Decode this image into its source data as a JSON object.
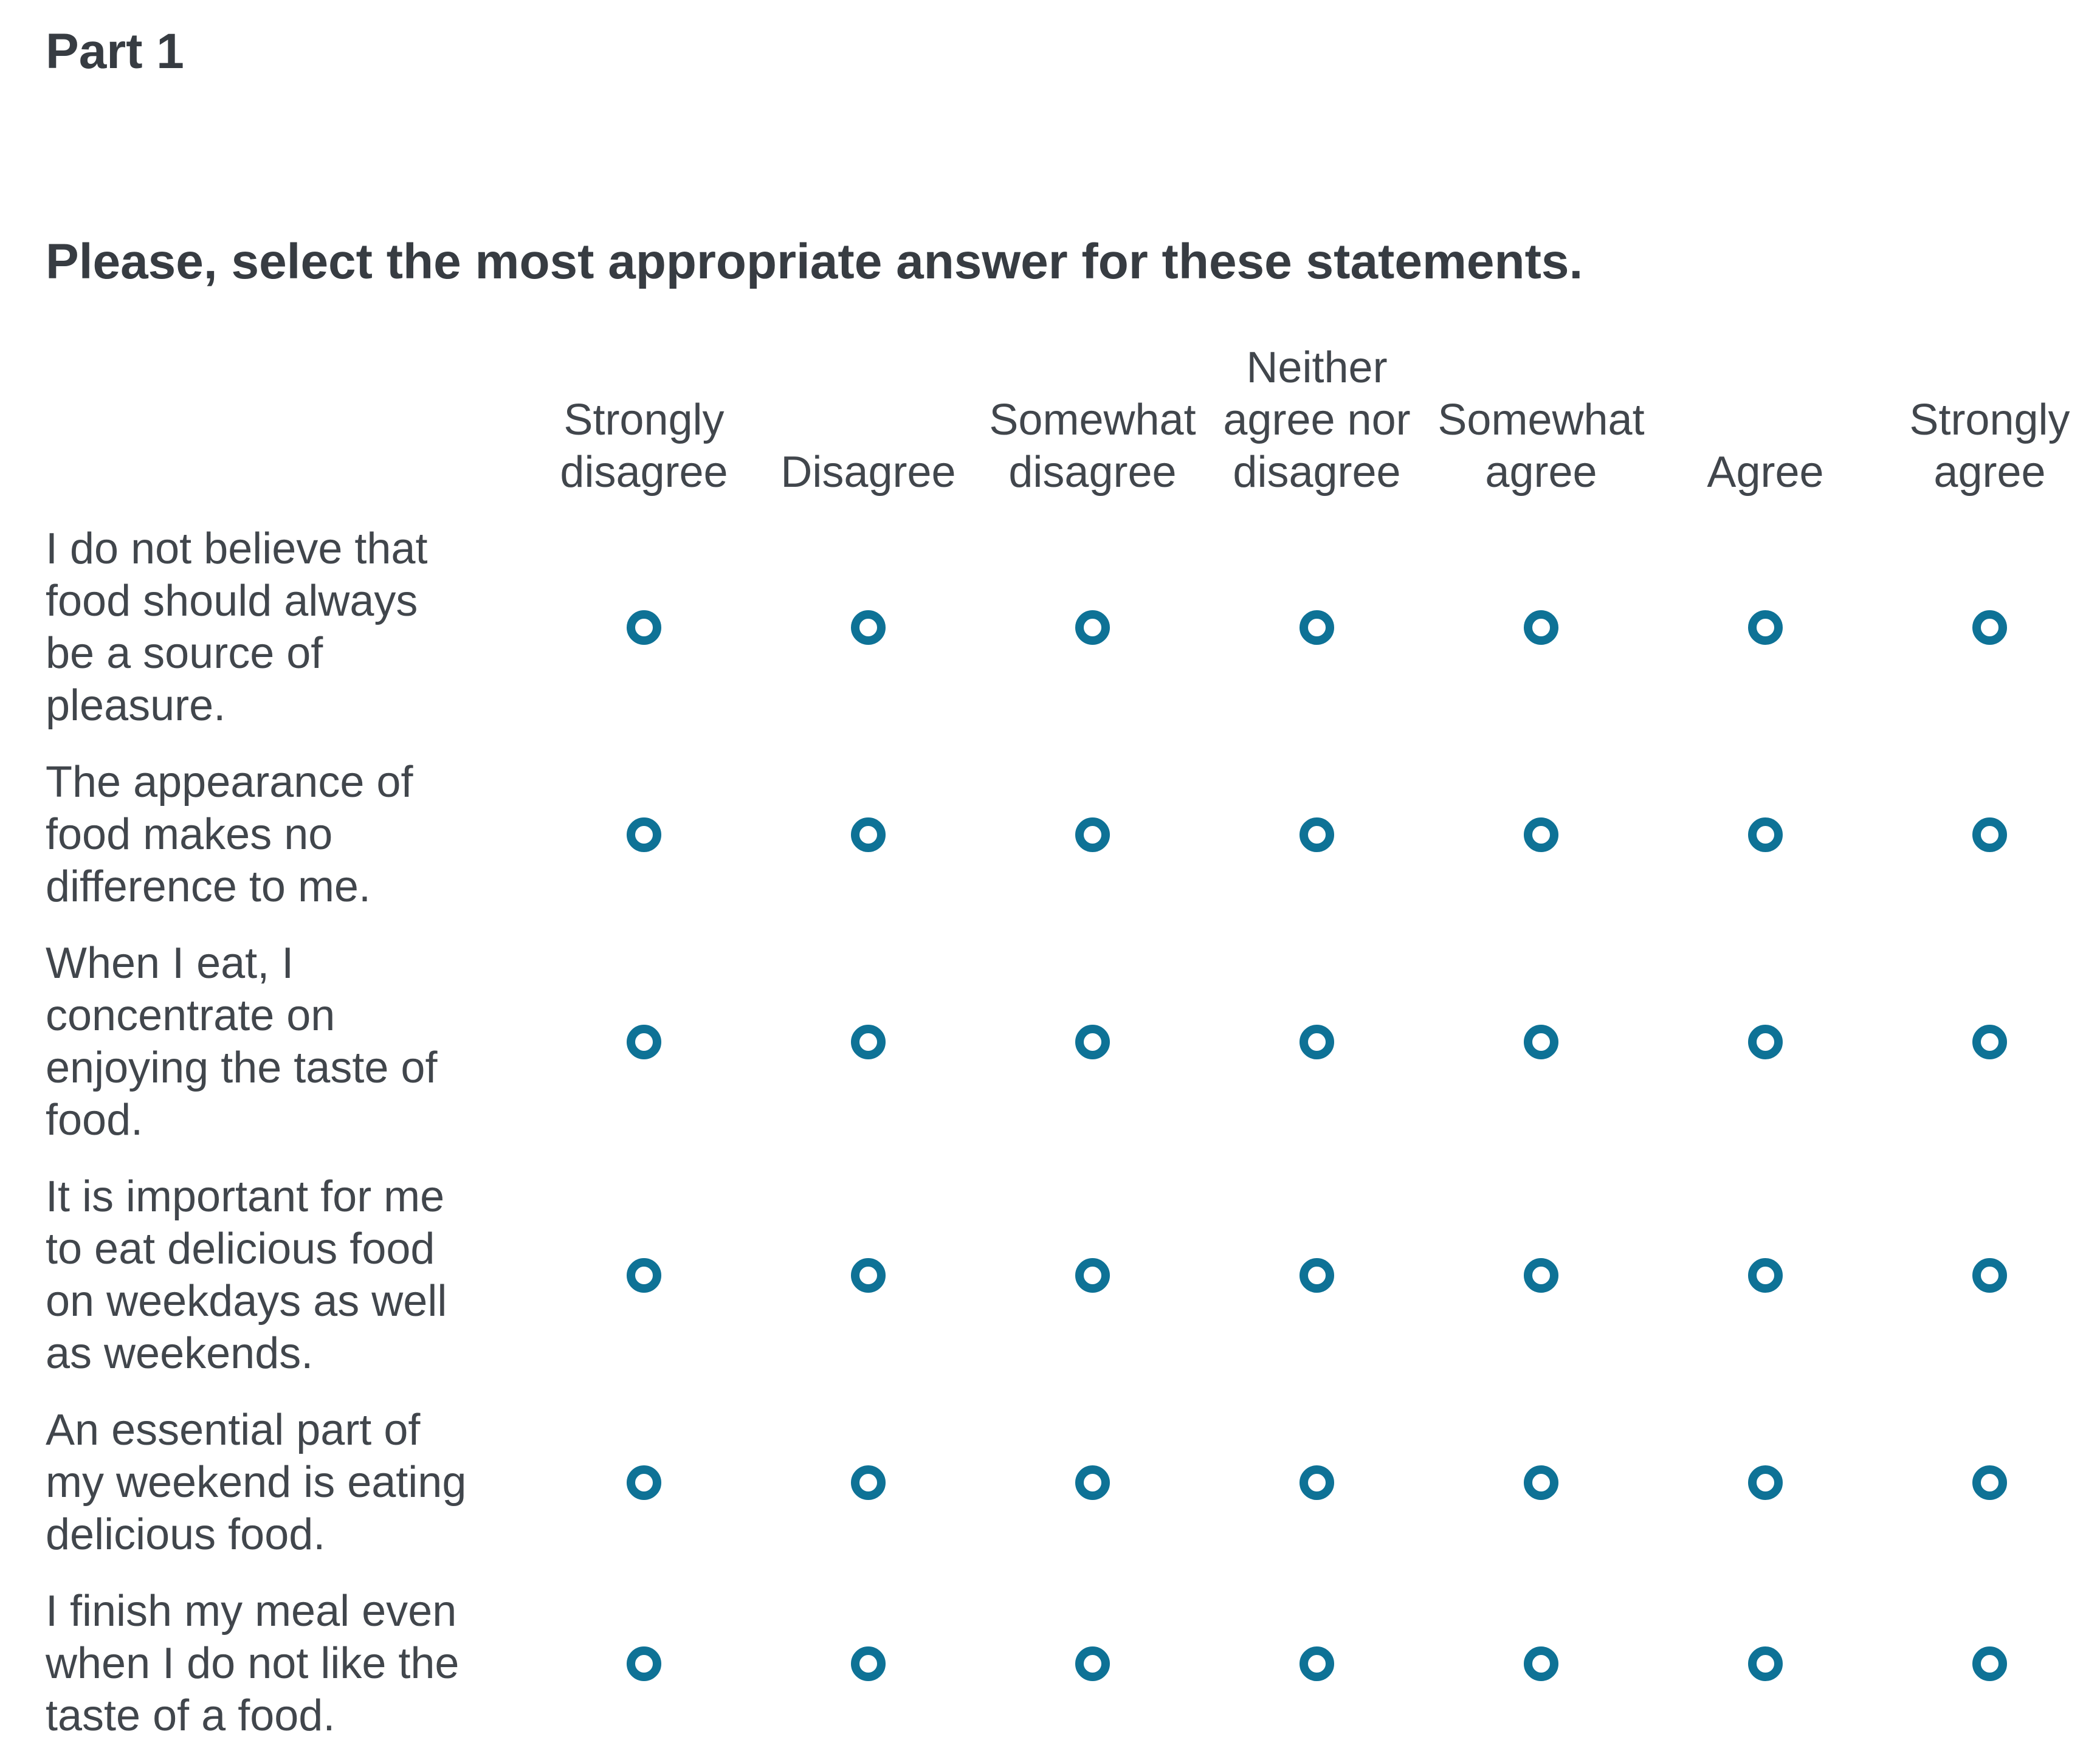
{
  "header": {
    "part_label": "Part 1",
    "instruction": "Please, select the most appropriate answer for these statements."
  },
  "theme": {
    "accent_color": "#0e7296",
    "text_color": "#41464c",
    "heading_color": "#373c42"
  },
  "matrix": {
    "columns": [
      {
        "label": "Strongly\ndisagree"
      },
      {
        "label": "Disagree"
      },
      {
        "label": "Somewhat\ndisagree"
      },
      {
        "label": "Neither\nagree nor\ndisagree"
      },
      {
        "label": "Somewhat\nagree"
      },
      {
        "label": "Agree"
      },
      {
        "label": "Strongly\nagree"
      }
    ],
    "rows": [
      {
        "statement": "I do not believe that\nfood should always\nbe a source of\npleasure.",
        "selected_value": null
      },
      {
        "statement": "The appearance of\nfood makes no\ndifference to me.",
        "selected_value": null
      },
      {
        "statement": "When I eat, I\nconcentrate on\nenjoying the taste of\nfood.",
        "selected_value": null
      },
      {
        "statement": "It is important for me\nto eat delicious food\non weekdays as well\nas weekends.",
        "selected_value": null
      },
      {
        "statement": "An essential part of\nmy weekend is eating\ndelicious food.",
        "selected_value": null
      },
      {
        "statement": "I finish my meal even\nwhen I do not like the\ntaste of a food.",
        "selected_value": null
      }
    ]
  }
}
